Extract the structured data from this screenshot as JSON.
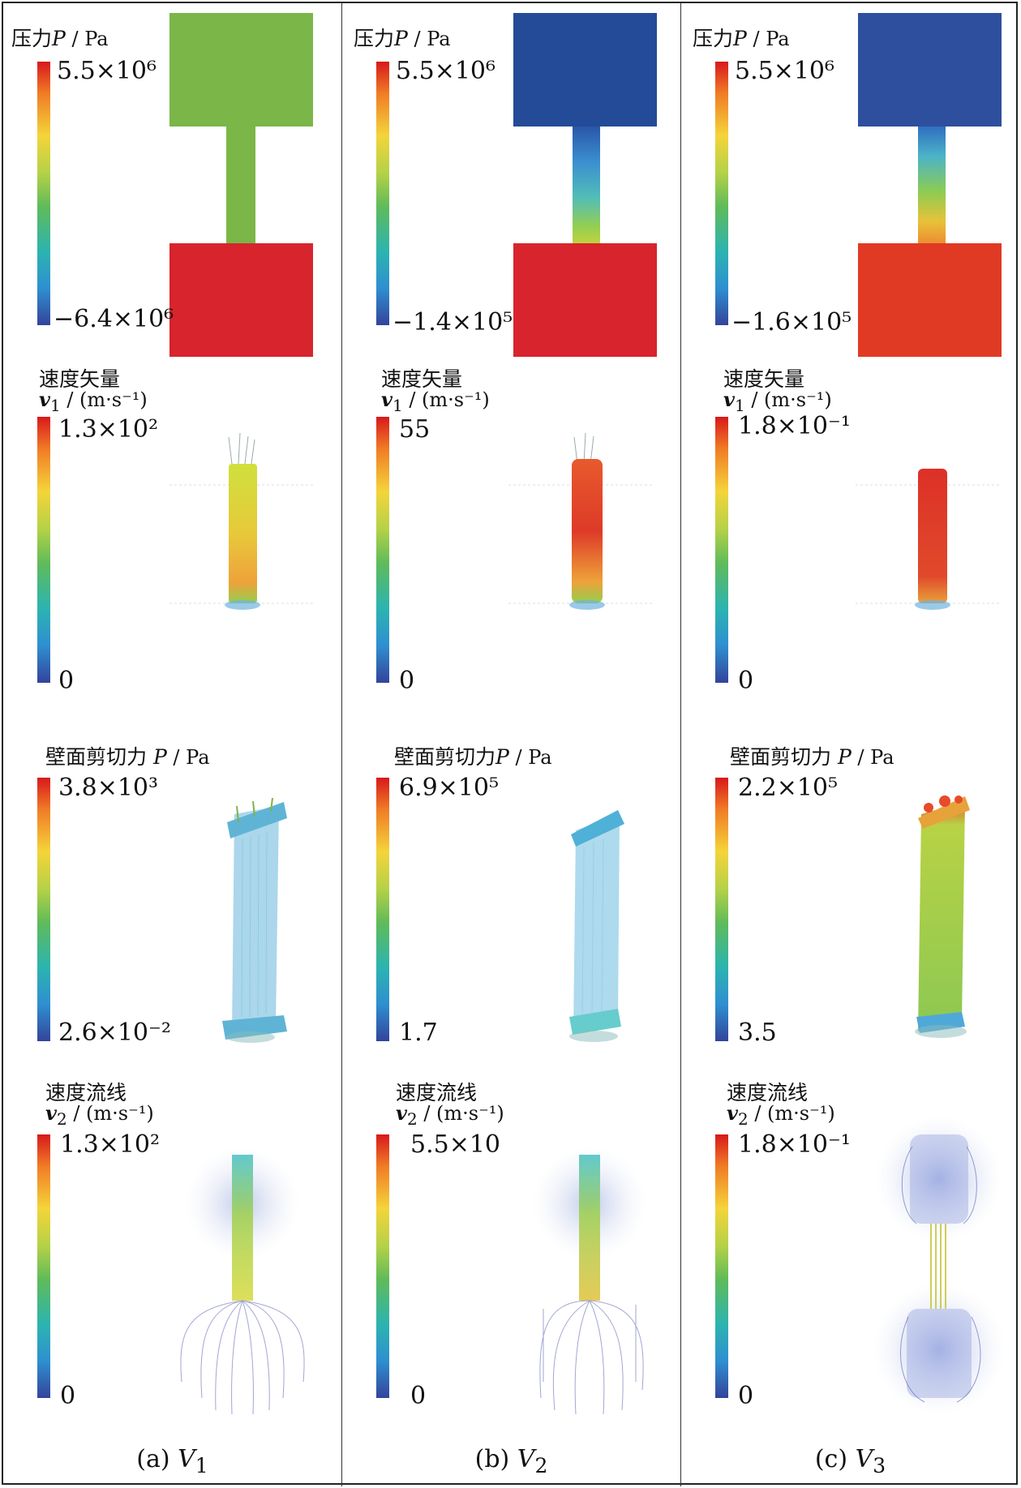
{
  "columns": [
    {
      "caption": "(a)",
      "caption_var": "V",
      "caption_sub": "1",
      "pressure": {
        "title": "压力",
        "sym": "P",
        "unit": " / Pa",
        "max": "5.5×10⁶",
        "min": "−6.4×10⁶",
        "fill_top": "#7ab648",
        "fill_neck": "#7ab648",
        "fill_bottom": "#d7242d"
      },
      "velocity_vector": {
        "title": "速度矢量",
        "sym": "v",
        "sub": "1",
        "unit": " / (m·s⁻¹)",
        "max": "1.3×10²",
        "min": "0"
      },
      "wall_shear": {
        "title": "壁面剪切力",
        "sym": "P",
        "unit": " / Pa",
        "max": "3.8×10³",
        "min": "2.6×10⁻²"
      },
      "streamline": {
        "title": "速度流线",
        "sym": "v",
        "sub": "2",
        "unit": " / (m·s⁻¹)",
        "max": "1.3×10²",
        "min": "0"
      }
    },
    {
      "caption": "(b)",
      "caption_var": "V",
      "caption_sub": "2",
      "pressure": {
        "title": "压力",
        "sym": "P",
        "unit": " / Pa",
        "max": "5.5×10⁶",
        "min": "−1.4×10⁵",
        "fill_top": "#234b98",
        "fill_neck": "gradient",
        "fill_bottom": "#d7242d"
      },
      "velocity_vector": {
        "title": "速度矢量",
        "sym": "v",
        "sub": "1",
        "unit": " / (m·s⁻¹)",
        "max": "55",
        "min": "0"
      },
      "wall_shear": {
        "title": "壁面剪切力",
        "sym": "P",
        "unit": " / Pa",
        "max": "6.9×10⁵",
        "min": "1.7"
      },
      "streamline": {
        "title": "速度流线",
        "sym": "v",
        "sub": "2",
        "unit": " / (m·s⁻¹)",
        "max": "5.5×10",
        "min": "0"
      }
    },
    {
      "caption": "(c)",
      "caption_var": "V",
      "caption_sub": "3",
      "pressure": {
        "title": "压力",
        "sym": "P",
        "unit": " / Pa",
        "max": "5.5×10⁶",
        "min": "−1.6×10⁵",
        "fill_top": "#2d4f9e",
        "fill_neck": "gradient",
        "fill_bottom": "#e03a24"
      },
      "velocity_vector": {
        "title": "速度矢量",
        "sym": "v",
        "sub": "1",
        "unit": " / (m·s⁻¹)",
        "max": "1.8×10⁻¹",
        "min": "0"
      },
      "wall_shear": {
        "title": "壁面剪切力",
        "sym": "P",
        "unit": " / Pa",
        "max": "2.2×10⁵",
        "min": "3.5"
      },
      "streamline": {
        "title": "速度流线",
        "sym": "v",
        "sub": "2",
        "unit": " / (m·s⁻¹)",
        "max": "1.8×10⁻¹",
        "min": "0"
      }
    }
  ]
}
